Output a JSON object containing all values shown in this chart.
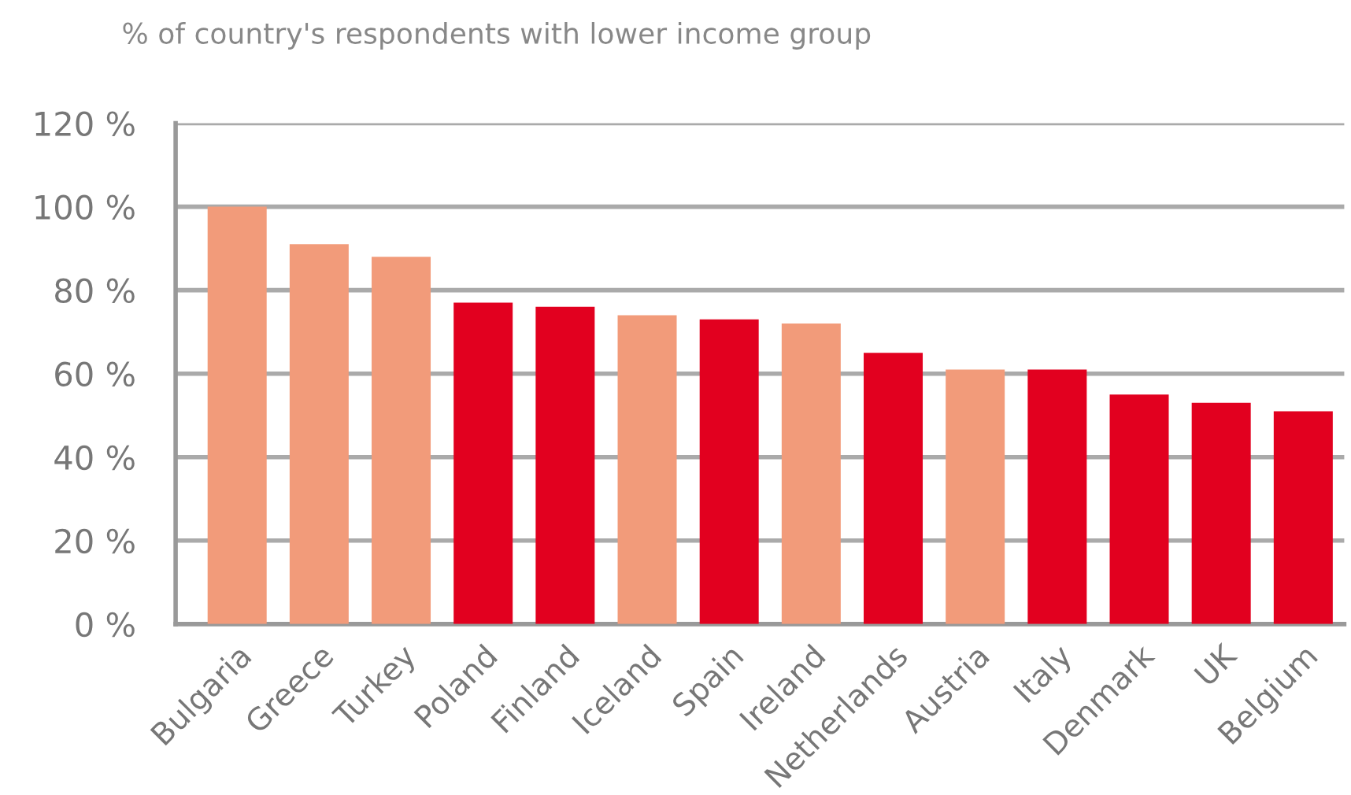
{
  "chart_data": {
    "type": "bar",
    "title": "% of country's respondents with lower income group",
    "categories": [
      "Bulgaria",
      "Greece",
      "Turkey",
      "Poland",
      "Finland",
      "Iceland",
      "Spain",
      "Ireland",
      "Netherlands",
      "Austria",
      "Italy",
      "Denmark",
      "UK",
      "Belgium"
    ],
    "values": [
      100,
      91,
      88,
      77,
      76,
      74,
      73,
      72,
      65,
      61,
      61,
      55,
      53,
      51
    ],
    "colors": [
      "#f29b7a",
      "#f29b7a",
      "#f29b7a",
      "#e2001f",
      "#e2001f",
      "#f29b7a",
      "#e2001f",
      "#f29b7a",
      "#e2001f",
      "#f29b7a",
      "#e2001f",
      "#e2001f",
      "#e2001f",
      "#e2001f"
    ],
    "ylim": [
      0,
      120
    ],
    "yticks": [
      {
        "value": 0,
        "label": "0 %"
      },
      {
        "value": 20,
        "label": "20 %"
      },
      {
        "value": 40,
        "label": "40 %"
      },
      {
        "value": 60,
        "label": "60 %"
      },
      {
        "value": 80,
        "label": "80 %"
      },
      {
        "value": 100,
        "label": "100 %"
      },
      {
        "value": 120,
        "label": "120 %"
      }
    ],
    "grid": "y",
    "legend": false
  }
}
